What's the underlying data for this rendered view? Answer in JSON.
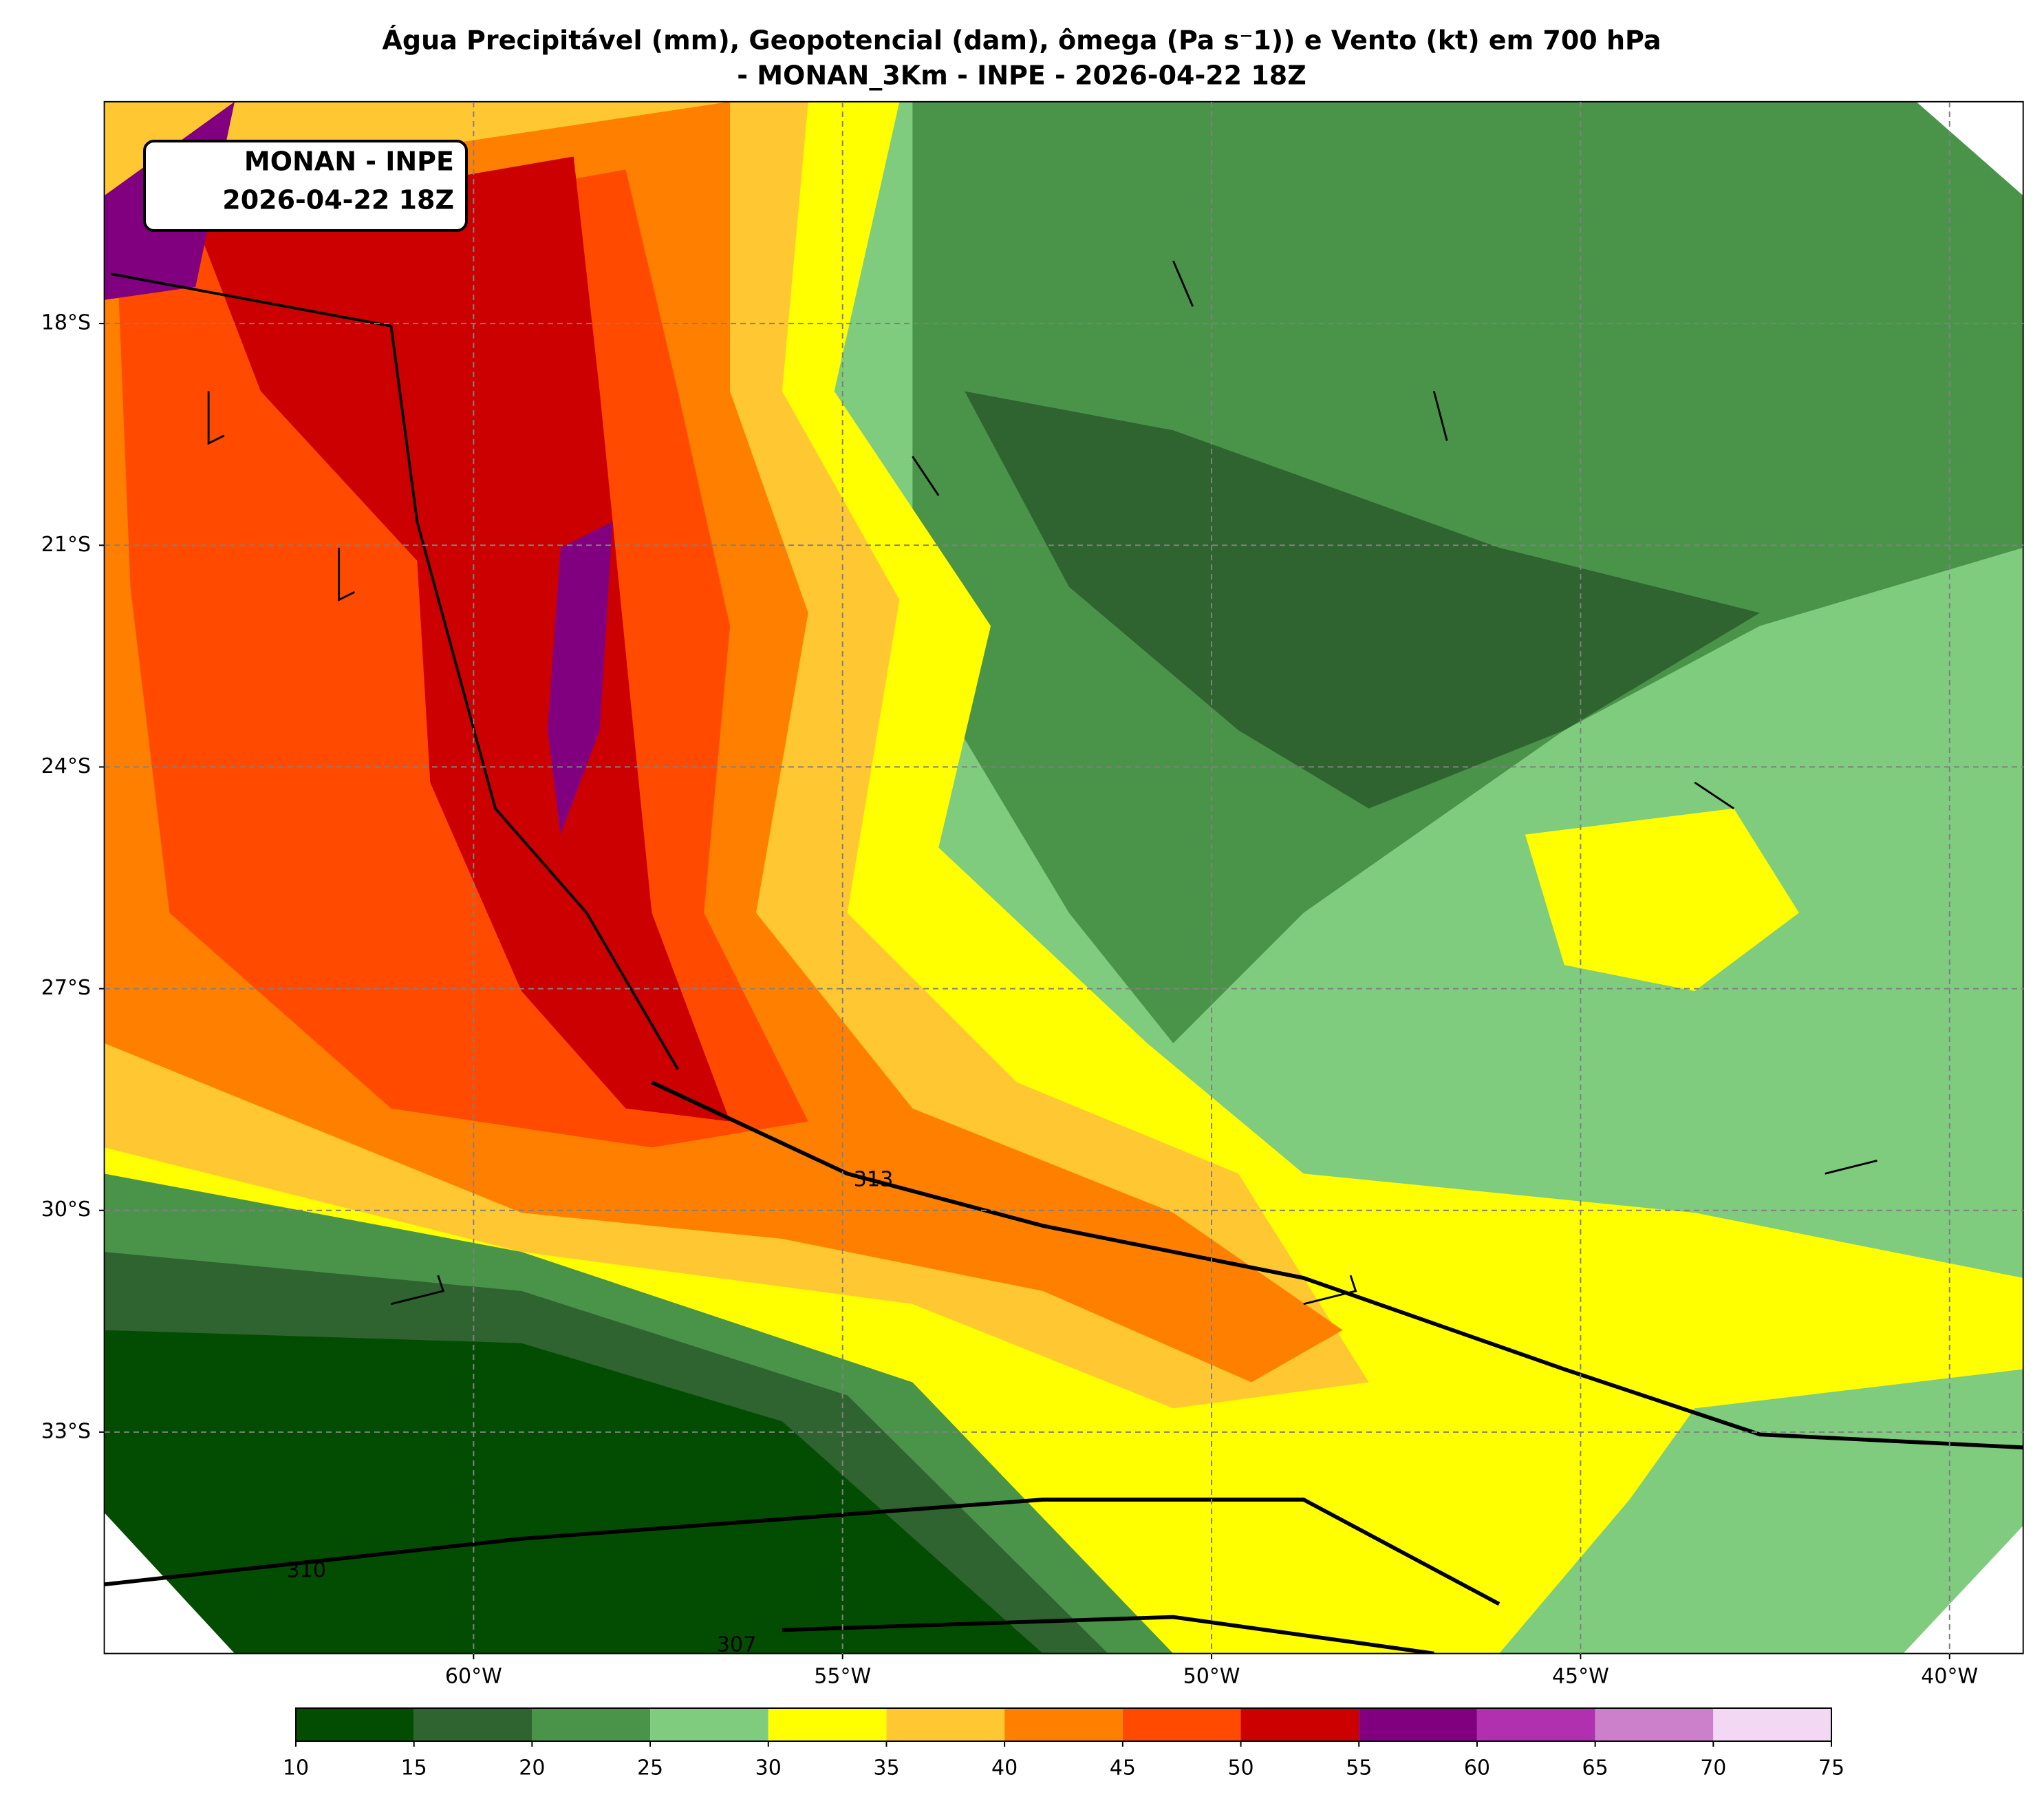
{
  "header": {
    "title": [
      "Água Precipitável (mm), Geopotencial (dam), ômega (Pa s⁻1)) e Vento (kt) em 700 hPa",
      "- MONAN_3Km - INPE - 2026-04-22 18Z"
    ]
  },
  "info_box": [
    "MONAN - INPE",
    "2026-04-22 18Z"
  ],
  "map": {
    "xlim": [
      -65,
      -39
    ],
    "ylim": [
      -36,
      -15
    ],
    "xticks": [
      {
        "value": -60,
        "label": "60°W"
      },
      {
        "value": -55,
        "label": "55°W"
      },
      {
        "value": -50,
        "label": "50°W"
      },
      {
        "value": -45,
        "label": "45°W"
      },
      {
        "value": -40,
        "label": "40°W"
      }
    ],
    "yticks": [
      {
        "value": -18,
        "label": "18°S"
      },
      {
        "value": -21,
        "label": "21°S"
      },
      {
        "value": -24,
        "label": "24°S"
      },
      {
        "value": -27,
        "label": "27°S"
      },
      {
        "value": -30,
        "label": "30°S"
      },
      {
        "value": -33,
        "label": "33°S"
      }
    ],
    "grid": true,
    "contour_labels": [
      313,
      310,
      307
    ]
  },
  "colorbar": {
    "ticks": [
      10,
      15,
      20,
      25,
      30,
      35,
      40,
      45,
      50,
      55,
      60,
      65,
      70,
      75
    ],
    "colors": [
      "#034d03",
      "#2f632f",
      "#4a944a",
      "#7fcc7f",
      "#ffff00",
      "#ffc832",
      "#ff8000",
      "#ff4a00",
      "#cc0000",
      "#800080",
      "#b030b0",
      "#cc80cc",
      "#f2d8f2"
    ]
  }
}
